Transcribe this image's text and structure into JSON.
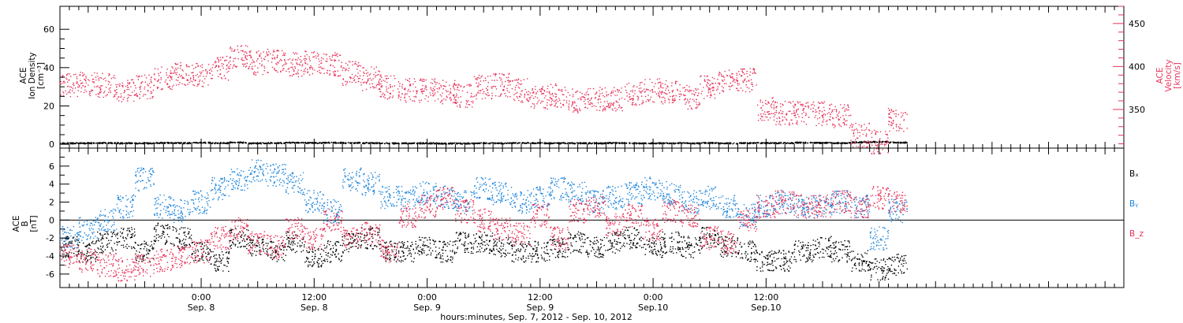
{
  "chart_data": [
    {
      "type": "scatter",
      "ylabel_left": [
        "ACE",
        "Ion Density",
        "[cm⁻³]"
      ],
      "ylabel_right": [
        "ACE",
        "Velocity",
        "[km/s]"
      ],
      "ylim_left": [
        -2,
        72
      ],
      "yticks_left": [
        0,
        20,
        40,
        60
      ],
      "ylim_right": [
        305,
        470
      ],
      "yticks_right": [
        350,
        400,
        450
      ],
      "series": [
        {
          "key": "density",
          "axis": "left",
          "color": "#000000",
          "x": [
            0,
            2,
            4,
            6,
            8,
            10,
            12,
            14,
            16,
            18,
            20,
            22,
            24,
            26,
            28,
            30,
            32,
            34,
            36,
            38,
            40,
            42,
            44,
            46,
            48,
            50,
            52,
            54,
            56,
            58,
            60,
            62,
            64,
            66,
            68,
            70,
            72,
            74,
            76,
            78,
            80,
            82,
            84,
            86,
            88
          ],
          "y": [
            0.5,
            0.5,
            0.6,
            0.5,
            0.5,
            0.7,
            0.6,
            0.8,
            0.6,
            0.9,
            0.5,
            0.6,
            0.8,
            0.7,
            0.8,
            0.7,
            0.6,
            0.5,
            0.5,
            0.5,
            0.4,
            0.4,
            0.5,
            0.5,
            0.6,
            0.6,
            0.5,
            0.5,
            0.5,
            0.6,
            0.5,
            0.5,
            0.5,
            0.5,
            0.6,
            0.5,
            0.6,
            0.6,
            0.6,
            0.8,
            0.7,
            0.6,
            1.0,
            1.2,
            0.9
          ]
        },
        {
          "key": "velocity",
          "axis": "right",
          "color": "#e6335a",
          "x": [
            0,
            2,
            4,
            6,
            8,
            10,
            12,
            14,
            16,
            18,
            20,
            22,
            24,
            26,
            28,
            30,
            32,
            34,
            36,
            38,
            40,
            42,
            44,
            46,
            48,
            50,
            52,
            54,
            56,
            58,
            60,
            62,
            64,
            66,
            68,
            70,
            72,
            74,
            76,
            78,
            80,
            82,
            84,
            86,
            88
          ],
          "y": [
            378,
            380,
            378,
            372,
            376,
            386,
            392,
            390,
            398,
            412,
            404,
            406,
            402,
            404,
            402,
            392,
            386,
            376,
            372,
            372,
            370,
            366,
            376,
            378,
            372,
            364,
            366,
            360,
            362,
            362,
            368,
            372,
            370,
            364,
            376,
            382,
            384,
            350,
            346,
            345,
            345,
            342,
            320,
            312,
            338
          ]
        }
      ]
    },
    {
      "type": "scatter",
      "ylabel": [
        "ACE",
        "B",
        "[nT]"
      ],
      "ylim": [
        -7.5,
        8
      ],
      "yticks": [
        -6,
        -4,
        -2,
        0,
        2,
        4,
        6
      ],
      "zero_line": true,
      "legend": [
        "Bₓ",
        "Bᵧ",
        "B_z"
      ],
      "legend_placement": "right",
      "series": [
        {
          "name": "Bₓ",
          "color": "#000000",
          "x": [
            0,
            2,
            4,
            6,
            8,
            10,
            12,
            14,
            16,
            18,
            20,
            22,
            24,
            26,
            28,
            30,
            32,
            34,
            36,
            38,
            40,
            42,
            44,
            46,
            48,
            50,
            52,
            54,
            56,
            58,
            60,
            62,
            64,
            66,
            68,
            70,
            72,
            74,
            76,
            78,
            80,
            82,
            84,
            86,
            88
          ],
          "y": [
            -3.0,
            -3.5,
            -2.5,
            -2.0,
            -3.5,
            -1.5,
            -2.0,
            -3.5,
            -4.5,
            -2.0,
            -3.0,
            -3.5,
            -2.5,
            -4.0,
            -3.5,
            -2.5,
            -2.0,
            -3.5,
            -3.5,
            -3.0,
            -3.5,
            -2.5,
            -2.5,
            -3.0,
            -3.5,
            -3.5,
            -3.0,
            -2.5,
            -3.0,
            -2.5,
            -2.0,
            -3.0,
            -2.5,
            -3.0,
            -2.0,
            -3.0,
            -3.5,
            -4.5,
            -4.5,
            -3.5,
            -3.0,
            -3.5,
            -4.5,
            -5.5,
            -5.0
          ]
        },
        {
          "name": "Bᵧ",
          "color": "#1f86db",
          "x": [
            0,
            2,
            4,
            6,
            8,
            10,
            12,
            14,
            16,
            18,
            20,
            22,
            24,
            26,
            28,
            30,
            32,
            34,
            36,
            38,
            40,
            42,
            44,
            46,
            48,
            50,
            52,
            54,
            56,
            58,
            60,
            62,
            64,
            66,
            68,
            70,
            72,
            74,
            76,
            78,
            80,
            82,
            84,
            86,
            88
          ],
          "y": [
            -2.0,
            -1.0,
            0.0,
            1.5,
            4.5,
            1.5,
            1.0,
            2.0,
            3.5,
            4.5,
            5.5,
            5.0,
            4.0,
            2.0,
            1.0,
            4.5,
            4.0,
            2.5,
            2.5,
            3.0,
            2.5,
            2.0,
            3.5,
            3.0,
            2.0,
            2.5,
            3.5,
            3.0,
            2.0,
            2.5,
            3.0,
            3.5,
            3.0,
            2.0,
            2.5,
            1.5,
            0.5,
            1.5,
            2.0,
            1.5,
            1.5,
            2.0,
            1.5,
            -2.0,
            1.0
          ]
        },
        {
          "name": "B_z",
          "color": "#e6335a",
          "x": [
            0,
            2,
            4,
            6,
            8,
            10,
            12,
            14,
            16,
            18,
            20,
            22,
            24,
            26,
            28,
            30,
            32,
            34,
            36,
            38,
            40,
            42,
            44,
            46,
            48,
            50,
            52,
            54,
            56,
            58,
            60,
            62,
            64,
            66,
            68,
            70,
            72,
            74,
            76,
            78,
            80,
            82,
            84,
            86,
            88
          ],
          "y": [
            -4.0,
            -4.5,
            -5.0,
            -5.5,
            -5.0,
            -4.5,
            -4.0,
            -3.5,
            -2.0,
            -1.0,
            -2.5,
            -3.0,
            -1.0,
            -2.0,
            0.0,
            -2.0,
            -1.5,
            -3.5,
            0.5,
            1.5,
            2.5,
            1.0,
            0.0,
            -1.0,
            -1.5,
            0.5,
            -2.0,
            1.0,
            1.5,
            -0.5,
            0.5,
            -1.0,
            1.0,
            0.5,
            -2.0,
            -2.5,
            0.0,
            1.5,
            2.0,
            1.5,
            1.5,
            2.0,
            1.5,
            2.5,
            2.0
          ]
        }
      ]
    }
  ],
  "x_axis": {
    "xlim": [
      -1,
      112
    ],
    "major_ticks": [
      {
        "x": 14,
        "time": "0:00",
        "date": "Sep. 8"
      },
      {
        "x": 26,
        "time": "12:00",
        "date": "Sep. 8"
      },
      {
        "x": 38,
        "time": "0:00",
        "date": "Sep. 9"
      },
      {
        "x": 50,
        "time": "12:00",
        "date": "Sep. 9"
      },
      {
        "x": 62,
        "time": "0:00",
        "date": "Sep.10"
      },
      {
        "x": 74,
        "time": "12:00",
        "date": "Sep.10"
      }
    ],
    "minor_step": 1,
    "label": "hours:minutes, Sep.  7, 2012 - Sep. 10, 2012"
  }
}
